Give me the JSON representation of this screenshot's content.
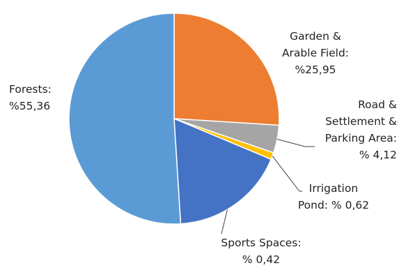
{
  "chart_data": {
    "type": "pie",
    "title": "",
    "slices": [
      {
        "label": "Forests",
        "value": 55.36,
        "line1": "Forests:",
        "line2": "%55,36",
        "color": "#5B9BD5"
      },
      {
        "label": "Garden & Arable Field",
        "value": 25.95,
        "line1": "Garden &",
        "line2": "Arable Field:",
        "line3": "%25,95",
        "color": "#ED7D31"
      },
      {
        "label": "Road & Settlement & Parking Area",
        "value": 4.12,
        "line1": "Road &",
        "line2": "Settlement &",
        "line3": "Parking Area:",
        "line4": "% 4,12",
        "color": "#A5A5A5"
      },
      {
        "label": "Irrigation Pond",
        "value": 0.62,
        "line1": "Irrigation",
        "line2": "Pond: % 0,62",
        "color": "#FFC000"
      },
      {
        "label": "Sports Spaces",
        "value": 0.42,
        "line1": "Sports Spaces:",
        "line2": "% 0,42",
        "color": "#4472C4"
      }
    ],
    "start_angle_deg": 0,
    "direction": "clockwise",
    "legend": "none",
    "leader_line_color": "#404040"
  }
}
